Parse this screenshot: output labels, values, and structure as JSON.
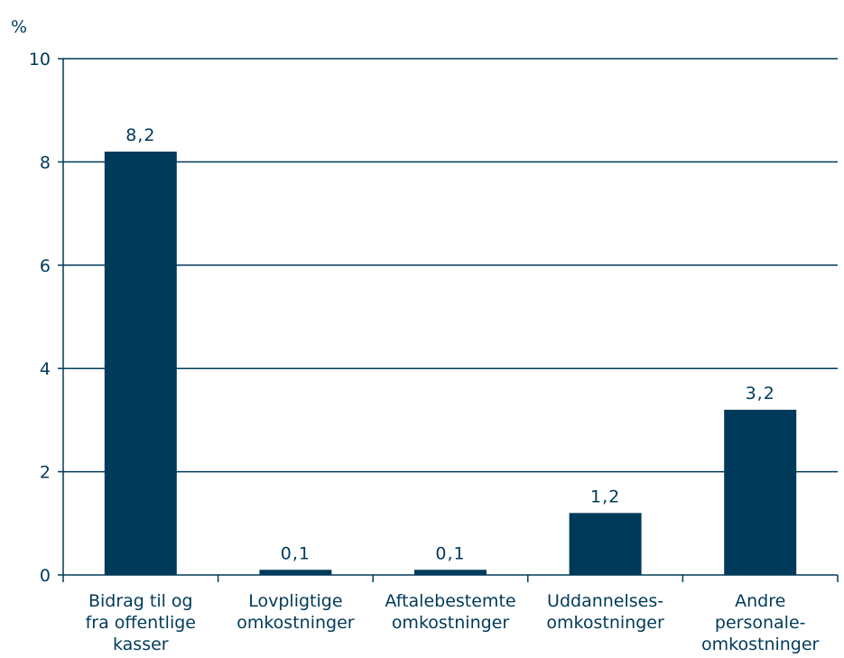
{
  "chart_data": {
    "type": "bar",
    "unit": "%",
    "categories": [
      [
        "Bidrag til og",
        "fra offentlige",
        "kasser"
      ],
      [
        "Lovpligtige",
        "omkostninger"
      ],
      [
        "Aftalebestemte",
        "omkostninger"
      ],
      [
        "Uddannelses-",
        "omkostninger"
      ],
      [
        "Andre",
        "personale-",
        "omkostninger"
      ]
    ],
    "values": [
      8.2,
      0.1,
      0.1,
      1.2,
      3.2
    ],
    "data_labels": [
      "8,2",
      "0,1",
      "0,1",
      "1,2",
      "3,2"
    ],
    "yticks": [
      0,
      2,
      4,
      6,
      8,
      10
    ],
    "ylim": [
      0,
      10
    ],
    "grid": true,
    "bar_color": "#003a5a",
    "axis_color": "#003a5a"
  }
}
